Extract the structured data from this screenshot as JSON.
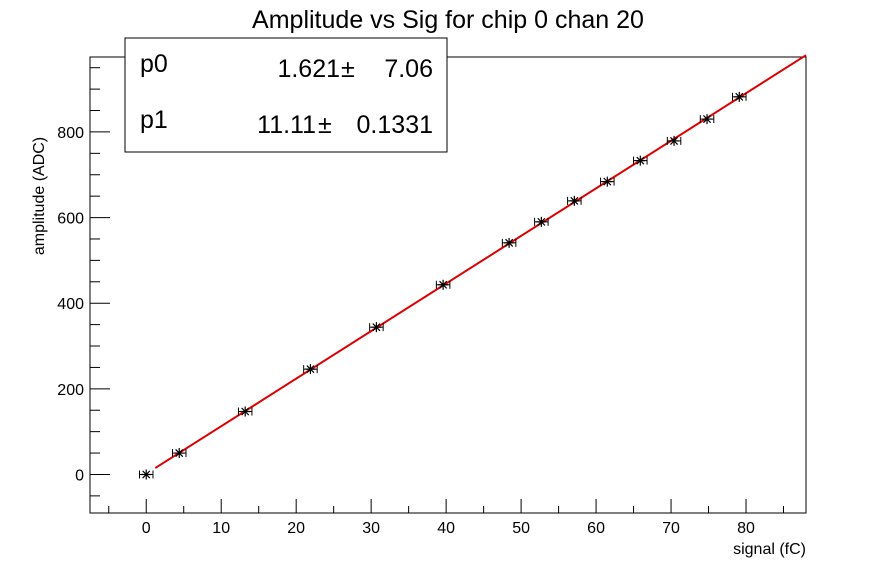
{
  "chart_data": {
    "type": "scatter",
    "title": "Amplitude vs Sig for chip 0 chan 20",
    "xlabel": "signal (fC)",
    "ylabel": "amplitude (ADC)",
    "xlim": [
      -7.5,
      88
    ],
    "ylim": [
      -90,
      975
    ],
    "xticks": [
      0,
      10,
      20,
      30,
      40,
      50,
      60,
      70,
      80
    ],
    "yticks": [
      0,
      200,
      400,
      600,
      800
    ],
    "grid": false,
    "series": [
      {
        "marker": "star",
        "color": "#000000",
        "x": [
          0.0,
          4.4,
          13.2,
          21.9,
          30.7,
          39.6,
          48.4,
          52.7,
          57.1,
          61.5,
          65.9,
          70.4,
          74.8,
          79.1
        ],
        "y": [
          0,
          50,
          147,
          246,
          344,
          443,
          541,
          590,
          639,
          684,
          733,
          779,
          830,
          882
        ],
        "x_err": [
          0.9,
          0.9,
          0.9,
          0.9,
          0.9,
          0.9,
          0.9,
          0.9,
          0.9,
          0.9,
          0.9,
          0.9,
          0.9,
          0.9
        ]
      }
    ],
    "fit": {
      "color": "#dd0000",
      "p0": 1.621,
      "p1": 11.11,
      "x_range": [
        1.2,
        88
      ]
    },
    "stats_box": {
      "placement": "top-left",
      "rows": [
        {
          "name": "p0",
          "value": "1.621",
          "pm": "±",
          "error": "7.06"
        },
        {
          "name": "p1",
          "value": "11.11",
          "pm": "±",
          "error": "0.1331"
        }
      ]
    }
  }
}
